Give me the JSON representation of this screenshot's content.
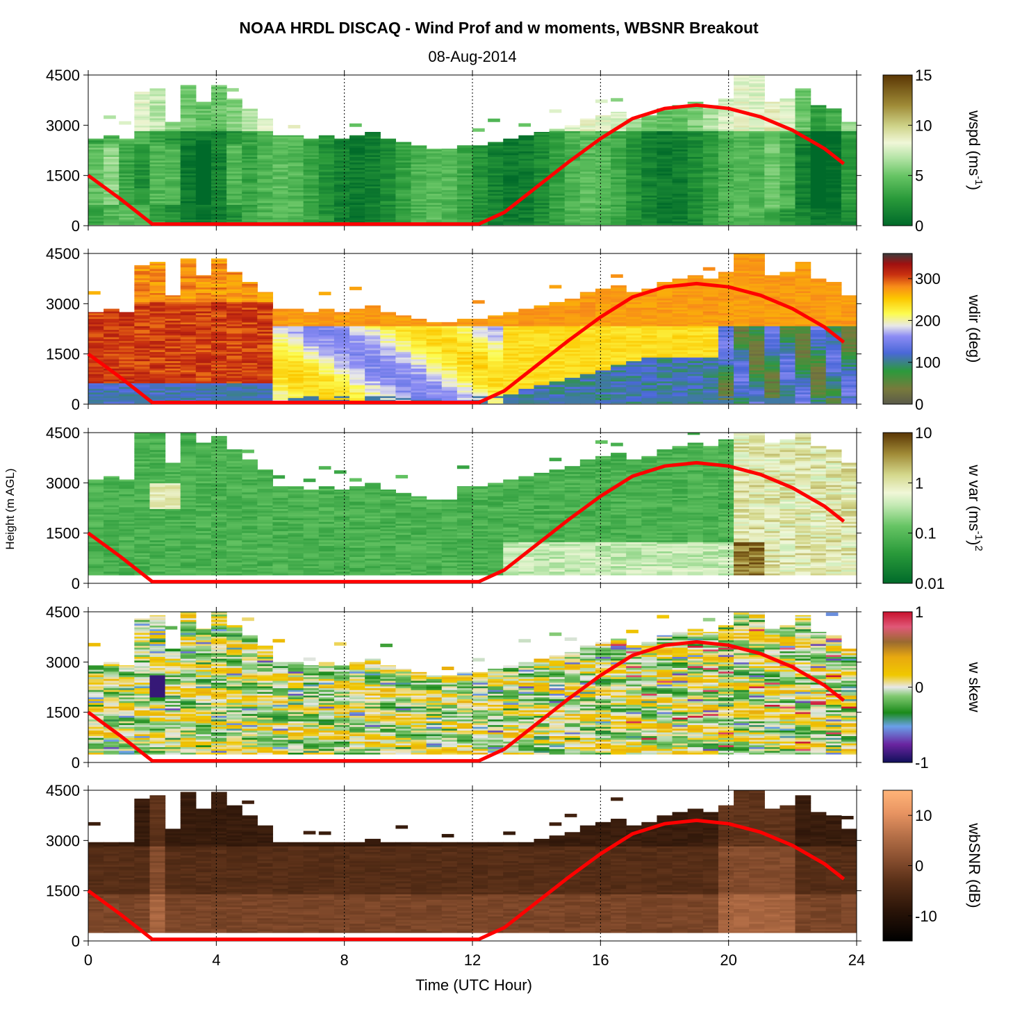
{
  "figure": {
    "title": "NOAA HRDL DISCAQ - Wind Prof and w moments, WBSNR Breakout",
    "subtitle": "08-Aug-2014",
    "ylabel": "Height (m AGL)",
    "xlabel": "Time (UTC Hour)",
    "xticks": [
      "0",
      "4",
      "8",
      "12",
      "16",
      "20",
      "24"
    ],
    "yticks": [
      "0",
      "1500",
      "3000",
      "4500"
    ]
  },
  "panels": [
    {
      "cb_label": "wspd (ms-1)",
      "cb_label_main": "wspd (ms",
      "cb_label_sup": "-1",
      "cb_label_end": ")",
      "cb_ticks": [
        "0",
        "5",
        "10",
        "15"
      ]
    },
    {
      "cb_label": "wdir (deg)",
      "cb_label_main": "wdir (deg)",
      "cb_label_sup": "",
      "cb_label_end": "",
      "cb_ticks": [
        "0",
        "100",
        "200",
        "300"
      ]
    },
    {
      "cb_label": "w var (ms-1)2",
      "cb_label_main": "w var (ms",
      "cb_label_sup": "-1",
      "cb_label_end": ")",
      "cb_label_sup2": "2",
      "cb_ticks": [
        "0.01",
        "0.1",
        "1",
        "10"
      ]
    },
    {
      "cb_label": "w skew",
      "cb_label_main": "w skew",
      "cb_label_sup": "",
      "cb_label_end": "",
      "cb_ticks": [
        "-1",
        "0",
        "1"
      ]
    },
    {
      "cb_label": "wbSNR (dB)",
      "cb_label_main": "wbSNR (dB)",
      "cb_label_sup": "",
      "cb_label_end": "",
      "cb_ticks": [
        "-10",
        "0",
        "10"
      ]
    }
  ],
  "chart_data": [
    {
      "type": "heatmap",
      "variable": "wspd",
      "unit": "ms-1",
      "x_range": [
        0,
        24
      ],
      "y_range": [
        0,
        4500
      ],
      "color_range": [
        0,
        15
      ],
      "profile_top_m": [
        2600,
        2700,
        2600,
        4000,
        4100,
        3100,
        4200,
        3700,
        4200,
        3800,
        3500,
        3200,
        2700,
        2700,
        2600,
        2700,
        2600,
        2700,
        2800,
        2600,
        2500,
        2400,
        2300,
        2300,
        2400,
        2400,
        2500,
        2600,
        2700,
        2800,
        2900,
        3000,
        3200,
        3300,
        3400,
        3200,
        3300,
        3500,
        3600,
        3700,
        3600,
        3800,
        4500,
        4500,
        3700,
        3800,
        4100,
        3600,
        3500,
        3100
      ],
      "overlay_line": {
        "name": "boundary layer curve",
        "color": "#ff0000",
        "x": [
          0,
          1,
          2,
          12.2,
          13,
          14,
          15,
          16,
          17,
          18,
          19,
          20,
          21,
          22,
          23,
          23.6
        ],
        "y": [
          1500,
          800,
          50,
          50,
          400,
          1150,
          1900,
          2600,
          3200,
          3500,
          3600,
          3500,
          3250,
          2850,
          2300,
          1850
        ]
      }
    },
    {
      "type": "heatmap",
      "variable": "wdir",
      "unit": "deg",
      "x_range": [
        0,
        24
      ],
      "y_range": [
        0,
        4500
      ],
      "color_range": [
        0,
        360
      ],
      "overlay_line": {
        "name": "boundary layer curve",
        "color": "#ff0000"
      }
    },
    {
      "type": "heatmap",
      "variable": "w var",
      "unit": "(ms-1)2",
      "scale": "log",
      "x_range": [
        0,
        24
      ],
      "y_range": [
        0,
        4500
      ],
      "color_range": [
        0.01,
        10
      ],
      "overlay_line": {
        "name": "boundary layer curve",
        "color": "#ff0000"
      }
    },
    {
      "type": "heatmap",
      "variable": "w skew",
      "x_range": [
        0,
        24
      ],
      "y_range": [
        0,
        4500
      ],
      "color_range": [
        -1,
        1
      ],
      "overlay_line": {
        "name": "boundary layer curve",
        "color": "#ff0000"
      }
    },
    {
      "type": "heatmap",
      "variable": "wbSNR",
      "unit": "dB",
      "x_range": [
        0,
        24
      ],
      "y_range": [
        0,
        4500
      ],
      "color_range": [
        -15,
        15
      ],
      "overlay_line": {
        "name": "boundary layer curve",
        "color": "#ff0000"
      }
    }
  ]
}
